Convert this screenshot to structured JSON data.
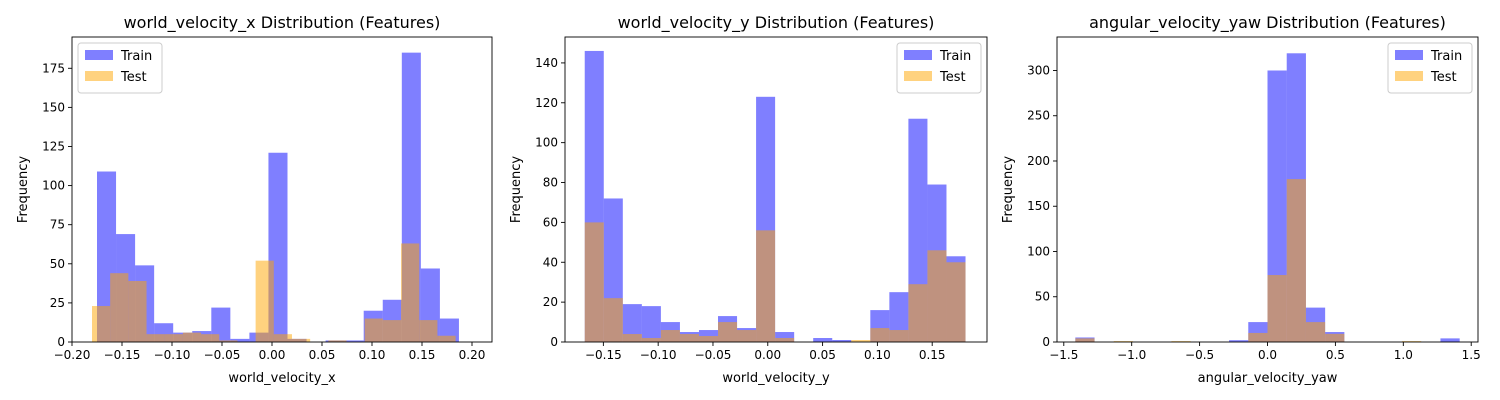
{
  "colors": {
    "train": "#0000ff",
    "test": "#ffa500",
    "alpha": 0.5
  },
  "chart_data": [
    {
      "type": "histogram",
      "title": "world_velocity_x Distribution (Features)",
      "xlabel": "world_velocity_x",
      "ylabel": "Frequency",
      "xlim": [
        -0.2,
        0.22
      ],
      "ylim": [
        0,
        195
      ],
      "xticks": [
        -0.2,
        -0.15,
        -0.1,
        -0.05,
        0.0,
        0.05,
        0.1,
        0.15,
        0.2
      ],
      "xtick_labels": [
        "−0.20",
        "−0.15",
        "−0.10",
        "−0.05",
        "0.00",
        "0.05",
        "0.10",
        "0.15",
        "0.20"
      ],
      "yticks": [
        0,
        25,
        50,
        75,
        100,
        125,
        150,
        175
      ],
      "ytick_labels": [
        "0",
        "25",
        "50",
        "75",
        "100",
        "125",
        "150",
        "175"
      ],
      "legend": {
        "loc": "upper-left",
        "entries": [
          "Train",
          "Test"
        ]
      },
      "series": [
        {
          "name": "Train",
          "bin_start": -0.175,
          "bin_width": 0.01905,
          "counts": [
            109,
            69,
            49,
            12,
            6,
            7,
            22,
            2,
            6,
            121,
            2,
            0,
            1,
            1,
            20,
            27,
            185,
            47,
            15
          ]
        },
        {
          "name": "Test",
          "bin_start": -0.18,
          "bin_width": 0.01818,
          "counts": [
            23,
            44,
            39,
            5,
            5,
            6,
            5,
            1,
            0,
            52,
            5,
            2,
            0,
            1,
            0,
            15,
            14,
            63,
            14,
            4
          ]
        }
      ]
    },
    {
      "type": "histogram",
      "title": "world_velocity_y Distribution (Features)",
      "xlabel": "world_velocity_y",
      "ylabel": "Frequency",
      "xlim": [
        -0.185,
        0.2
      ],
      "ylim": [
        0,
        153
      ],
      "xticks": [
        -0.15,
        -0.1,
        -0.05,
        0.0,
        0.05,
        0.1,
        0.15
      ],
      "xtick_labels": [
        "−0.15",
        "−0.10",
        "−0.05",
        "0.00",
        "0.05",
        "0.10",
        "0.15"
      ],
      "yticks": [
        0,
        20,
        40,
        60,
        80,
        100,
        120,
        140
      ],
      "ytick_labels": [
        "0",
        "20",
        "40",
        "60",
        "80",
        "100",
        "120",
        "140"
      ],
      "legend": {
        "loc": "upper-right",
        "entries": [
          "Train",
          "Test"
        ]
      },
      "series": [
        {
          "name": "Train",
          "bin_start": -0.167,
          "bin_width": 0.01737,
          "counts": [
            146,
            72,
            19,
            18,
            10,
            5,
            6,
            13,
            7,
            123,
            5,
            0,
            2,
            1,
            0,
            16,
            25,
            112,
            79,
            43
          ]
        },
        {
          "name": "Test",
          "bin_start": -0.167,
          "bin_width": 0.01737,
          "counts": [
            60,
            22,
            4,
            2,
            6,
            4,
            3,
            10,
            6,
            56,
            2,
            0,
            0,
            0,
            1,
            7,
            6,
            29,
            46,
            40
          ]
        }
      ]
    },
    {
      "type": "histogram",
      "title": "angular_velocity_yaw Distribution (Features)",
      "xlabel": "angular_velocity_yaw",
      "ylabel": "Frequency",
      "xlim": [
        -1.55,
        1.55
      ],
      "ylim": [
        0,
        337
      ],
      "xticks": [
        -1.5,
        -1.0,
        -0.5,
        0.0,
        0.5,
        1.0,
        1.5
      ],
      "xtick_labels": [
        "−1.5",
        "−1.0",
        "−0.5",
        "0.0",
        "0.5",
        "1.0",
        "1.5"
      ],
      "yticks": [
        0,
        50,
        100,
        150,
        200,
        250,
        300
      ],
      "ytick_labels": [
        "0",
        "50",
        "100",
        "150",
        "200",
        "250",
        "300"
      ],
      "legend": {
        "loc": "upper-right",
        "entries": [
          "Train",
          "Test"
        ]
      },
      "series": [
        {
          "name": "Train",
          "bin_start": -1.415,
          "bin_width": 0.1415,
          "counts": [
            5,
            0,
            0,
            0,
            0,
            0,
            0,
            0,
            2,
            22,
            300,
            319,
            38,
            11,
            0,
            0,
            0,
            0,
            0,
            4
          ]
        },
        {
          "name": "Test",
          "bin_start": -1.415,
          "bin_width": 0.1415,
          "counts": [
            4,
            0,
            1,
            0,
            0,
            1,
            0,
            0,
            0,
            10,
            74,
            180,
            22,
            9,
            0,
            0,
            0,
            1,
            0,
            0
          ]
        }
      ]
    }
  ]
}
